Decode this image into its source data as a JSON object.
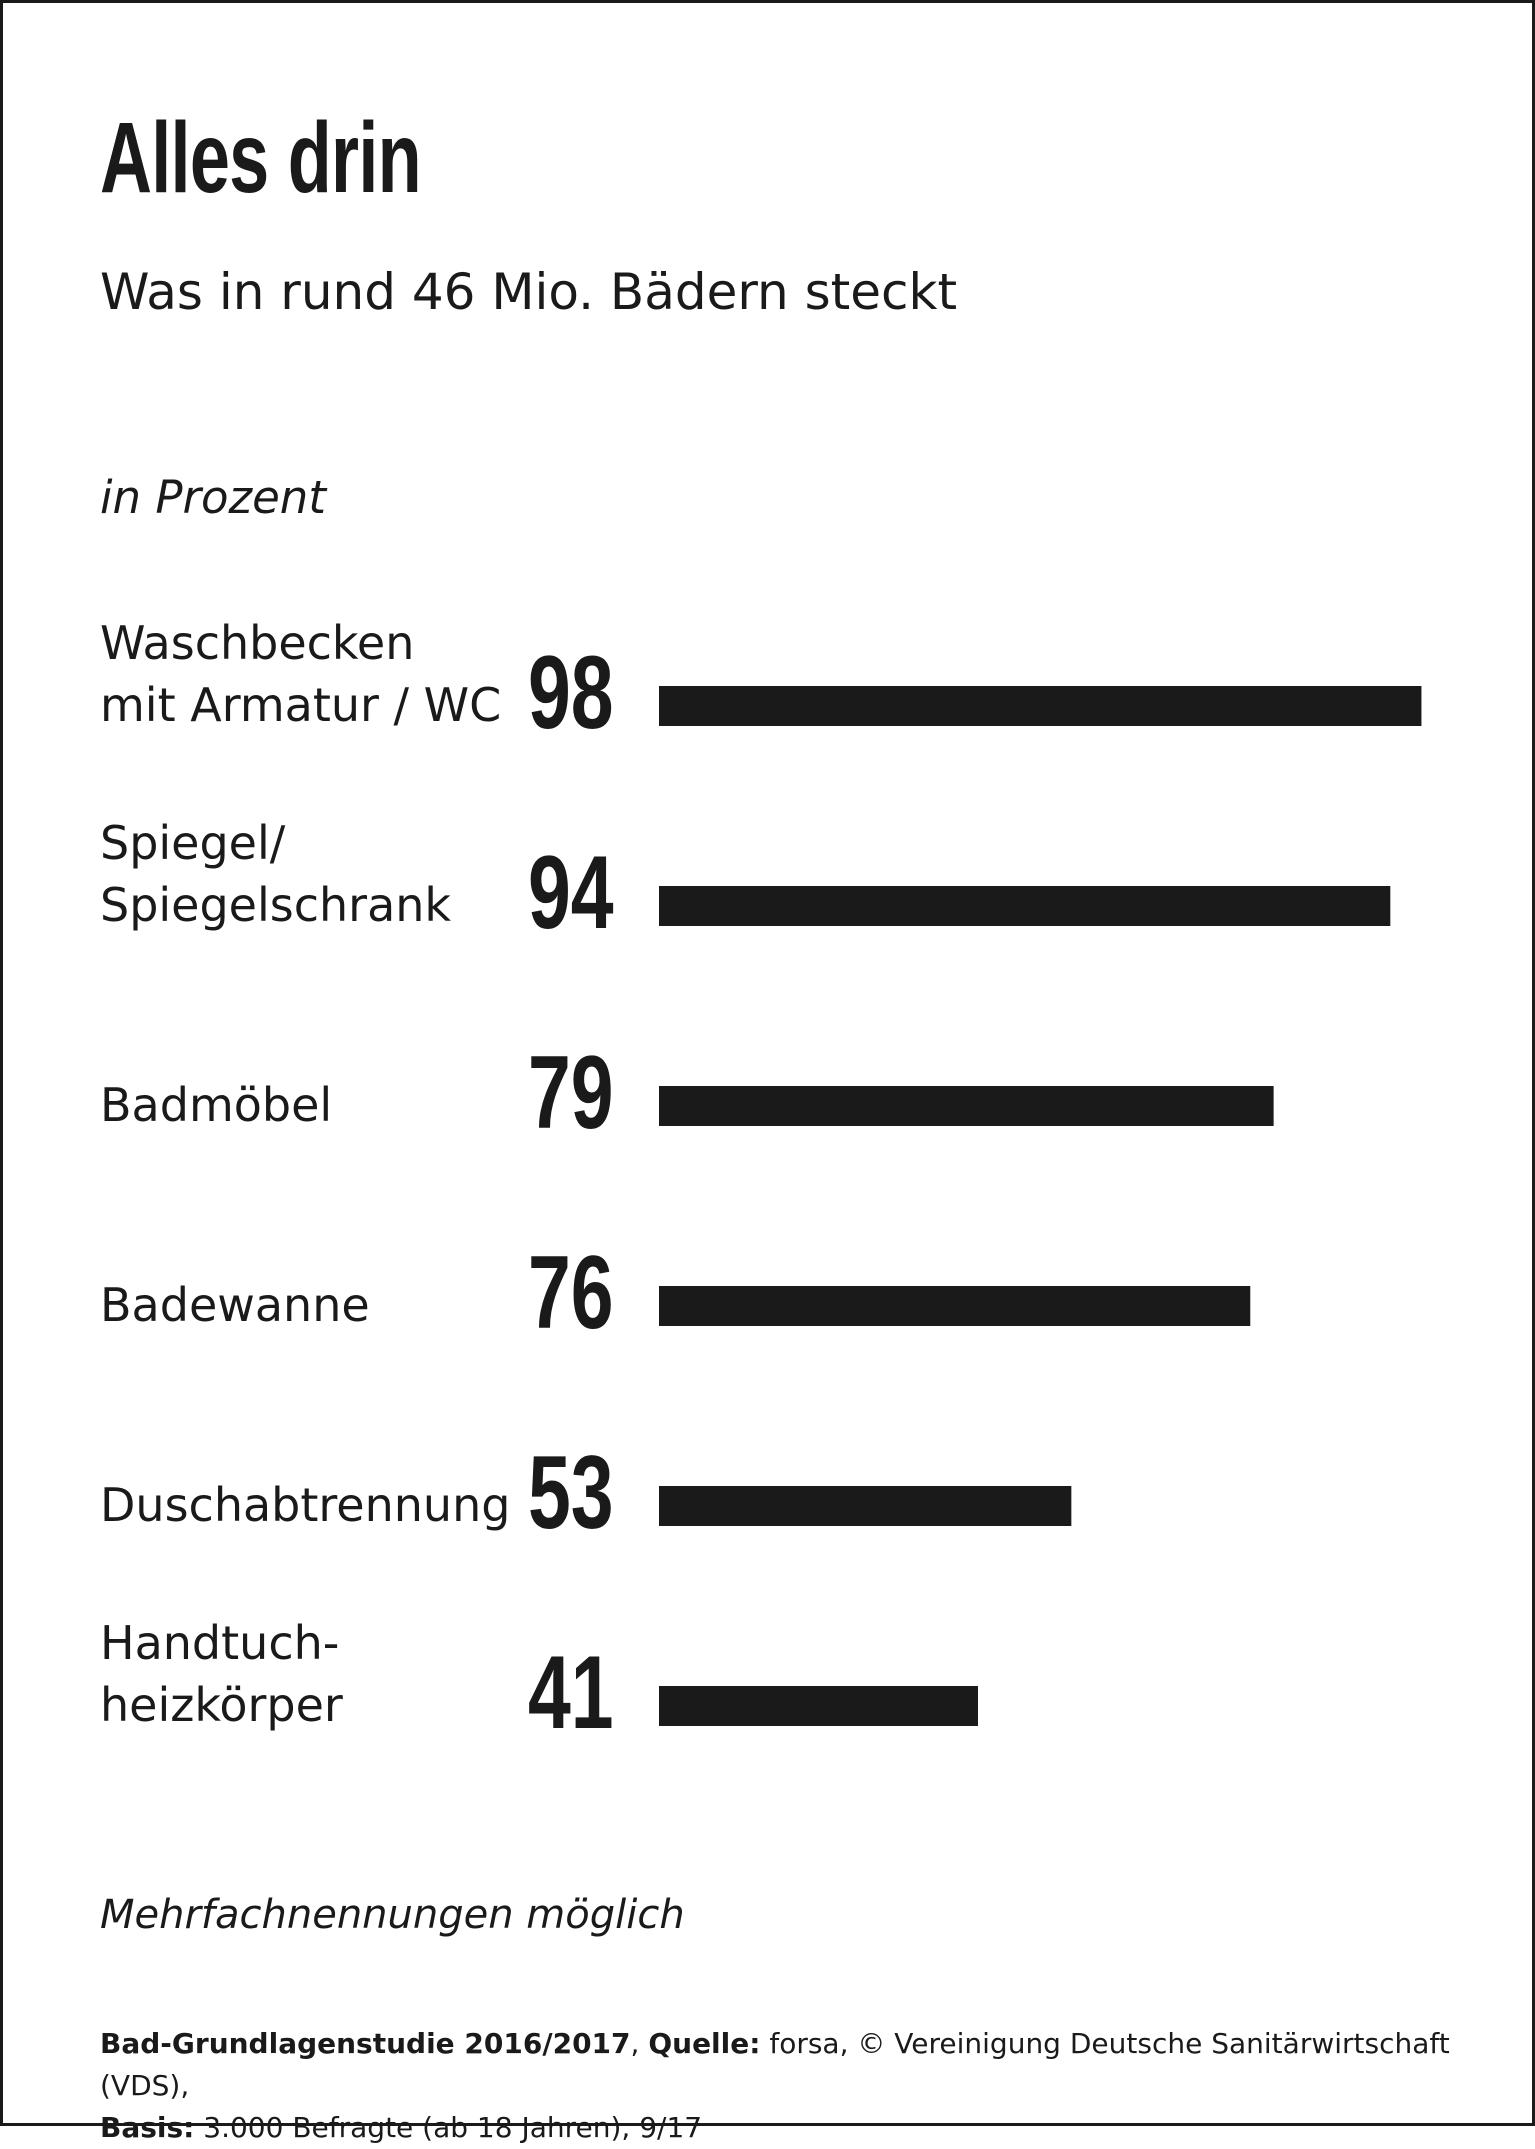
{
  "chart_data": {
    "type": "bar",
    "orientation": "horizontal",
    "title": "Alles drin",
    "subtitle": "Was in rund 46 Mio. Bädern steckt",
    "unit_label": "in Prozent",
    "categories": [
      [
        "Waschbecken",
        "mit Armatur / WC"
      ],
      [
        "Spiegel/",
        "Spiegelschrank"
      ],
      [
        "Badmöbel"
      ],
      [
        "Badewanne"
      ],
      [
        "Duschabtrennung"
      ],
      [
        "Handtuch-",
        "heizkörper"
      ]
    ],
    "values": [
      98,
      94,
      79,
      76,
      53,
      41
    ],
    "xlim": [
      0,
      100
    ],
    "grid": false,
    "legend": "none",
    "bar_color": "#1a1a1a"
  },
  "note": "Mehrfachnennungen möglich",
  "footer": {
    "line1_study_label": "Bad-Grundlagenstudie 2016/2017",
    "line1_separator": ", ",
    "line1_source_label": "Quelle:",
    "line1_source_text": " forsa, © Vereinigung Deutsche Sanitärwirtschaft (VDS),",
    "line2_basis_label": "Basis:",
    "line2_basis_text": " 3.000 Befragte (ab 18 Jahren), 9/17"
  }
}
